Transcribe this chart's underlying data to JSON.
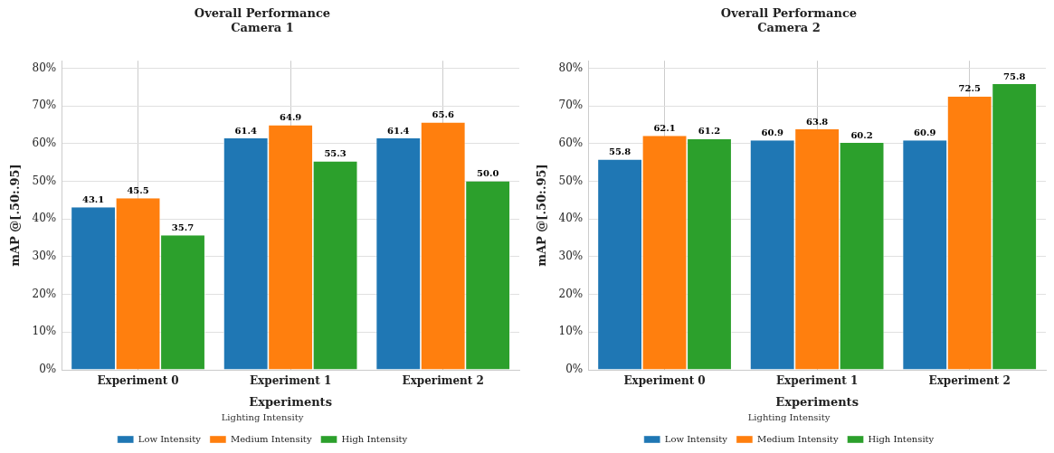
{
  "chart_data": [
    {
      "type": "bar",
      "title": "Overall Performance\nCamera 1",
      "xlabel": "Experiments",
      "ylabel": "mAP @[.50:.95]",
      "legend_title": "Lighting Intensity",
      "legend": "bottom",
      "grid": true,
      "categories": [
        "Experiment 0",
        "Experiment 1",
        "Experiment 2"
      ],
      "ylim": [
        0,
        82
      ],
      "yticks": [
        {
          "value": 0,
          "label": "0%"
        },
        {
          "value": 10,
          "label": "10%"
        },
        {
          "value": 20,
          "label": "20%"
        },
        {
          "value": 30,
          "label": "30%"
        },
        {
          "value": 40,
          "label": "40%"
        },
        {
          "value": 50,
          "label": "50%"
        },
        {
          "value": 60,
          "label": "60%"
        },
        {
          "value": 70,
          "label": "70%"
        },
        {
          "value": 80,
          "label": "80%"
        }
      ],
      "series": [
        {
          "name": "Low Intensity",
          "color": "#1f77b4",
          "values": [
            43.1,
            61.4,
            61.4
          ],
          "value_labels": [
            "43.1",
            "61.4",
            "61.4"
          ]
        },
        {
          "name": "Medium Intensity",
          "color": "#ff7f0e",
          "values": [
            45.5,
            64.9,
            65.6
          ],
          "value_labels": [
            "45.5",
            "64.9",
            "65.6"
          ]
        },
        {
          "name": "High Intensity",
          "color": "#2ca02c",
          "values": [
            35.7,
            55.3,
            50.0
          ],
          "value_labels": [
            "35.7",
            "55.3",
            "50.0"
          ]
        }
      ]
    },
    {
      "type": "bar",
      "title": "Overall Performance\nCamera 2",
      "xlabel": "Experiments",
      "ylabel": "mAP @[.50:.95]",
      "legend_title": "Lighting Intensity",
      "legend": "bottom",
      "grid": true,
      "categories": [
        "Experiment 0",
        "Experiment 1",
        "Experiment 2"
      ],
      "ylim": [
        0,
        82
      ],
      "yticks": [
        {
          "value": 0,
          "label": "0%"
        },
        {
          "value": 10,
          "label": "10%"
        },
        {
          "value": 20,
          "label": "20%"
        },
        {
          "value": 30,
          "label": "30%"
        },
        {
          "value": 40,
          "label": "40%"
        },
        {
          "value": 50,
          "label": "50%"
        },
        {
          "value": 60,
          "label": "60%"
        },
        {
          "value": 70,
          "label": "70%"
        },
        {
          "value": 80,
          "label": "80%"
        }
      ],
      "series": [
        {
          "name": "Low Intensity",
          "color": "#1f77b4",
          "values": [
            55.8,
            60.9,
            60.9
          ],
          "value_labels": [
            "55.8",
            "60.9",
            "60.9"
          ]
        },
        {
          "name": "Medium Intensity",
          "color": "#ff7f0e",
          "values": [
            62.1,
            63.8,
            72.5
          ],
          "value_labels": [
            "62.1",
            "63.8",
            "72.5"
          ]
        },
        {
          "name": "High Intensity",
          "color": "#2ca02c",
          "values": [
            61.2,
            60.2,
            75.8
          ],
          "value_labels": [
            "61.2",
            "60.2",
            "75.8"
          ]
        }
      ]
    }
  ]
}
